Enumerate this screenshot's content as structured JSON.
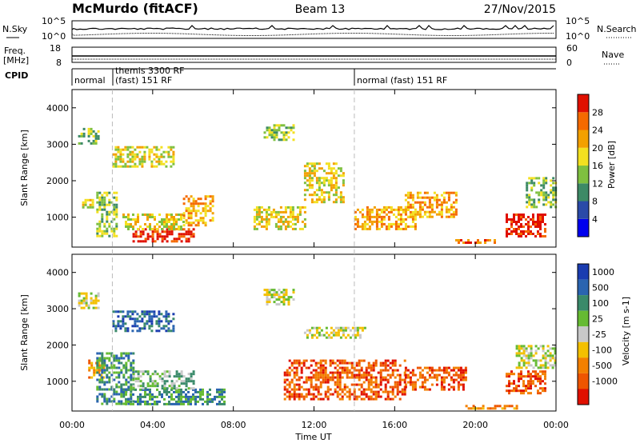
{
  "header": {
    "title": "McMurdo (fitACF)",
    "beam": "Beam 13",
    "date": "27/Nov/2015"
  },
  "top_panels": {
    "nsky_label": "N.Sky",
    "nsearch_label": "N.Search",
    "nsky_scale": [
      "10^5",
      "10^0"
    ],
    "nsearch_scale": [
      "10^5",
      "10^0"
    ],
    "freq_label": "Freq.",
    "freq_unit": "[MHz]",
    "freq_ticks": [
      "18",
      "8"
    ],
    "nave_label": "Nave",
    "nave_ticks": [
      "60",
      "0"
    ],
    "cpid_label": "CPID",
    "cpid_segments": [
      {
        "start_hour": 0,
        "label": "normal"
      },
      {
        "start_hour": 2,
        "label": "themis 3300 RF",
        "sub": "(fast) 151 RF"
      },
      {
        "start_hour": 14,
        "label": "normal (fast) 151 RF"
      }
    ]
  },
  "chart_data": [
    {
      "type": "heatmap",
      "panel": "power",
      "ylabel": "Slant Range [km]",
      "ylim": [
        180,
        4500
      ],
      "yticks": [
        "1000",
        "2000",
        "3000",
        "4000"
      ],
      "x_hours": [
        0,
        24
      ],
      "colorbar": {
        "label": "Power [dB]",
        "ticks": [
          "4",
          "8",
          "12",
          "16",
          "20",
          "24",
          "28"
        ],
        "colors": [
          "#0000ee",
          "#2a4aa8",
          "#3d8a66",
          "#7fc040",
          "#f3e020",
          "#f3a000",
          "#f56a00",
          "#e01000"
        ]
      },
      "echo_regions": [
        {
          "t0": 0.3,
          "t1": 1.3,
          "r0": 3000,
          "r1": 3450,
          "level": 3
        },
        {
          "t0": 0.5,
          "t1": 1.2,
          "r0": 1250,
          "r1": 1500,
          "level": 4
        },
        {
          "t0": 1.2,
          "t1": 2.2,
          "r0": 500,
          "r1": 1700,
          "level": 3
        },
        {
          "t0": 2.0,
          "t1": 5.0,
          "r0": 2400,
          "r1": 2950,
          "level": 4
        },
        {
          "t0": 3.0,
          "t1": 6.0,
          "r0": 350,
          "r1": 700,
          "level": 7
        },
        {
          "t0": 2.5,
          "t1": 5.5,
          "r0": 700,
          "r1": 1100,
          "level": 4
        },
        {
          "t0": 5.5,
          "t1": 7.0,
          "r0": 800,
          "r1": 1600,
          "level": 5
        },
        {
          "t0": 9.5,
          "t1": 11.0,
          "r0": 3100,
          "r1": 3550,
          "level": 3
        },
        {
          "t0": 9.0,
          "t1": 11.5,
          "r0": 700,
          "r1": 1300,
          "level": 4
        },
        {
          "t0": 11.5,
          "t1": 13.5,
          "r0": 1400,
          "r1": 2500,
          "level": 4
        },
        {
          "t0": 14.0,
          "t1": 17.0,
          "r0": 700,
          "r1": 1300,
          "level": 5
        },
        {
          "t0": 16.5,
          "t1": 19.0,
          "r0": 1000,
          "r1": 1700,
          "level": 5
        },
        {
          "t0": 19.0,
          "t1": 21.0,
          "r0": 300,
          "r1": 400,
          "level": 6
        },
        {
          "t0": 21.5,
          "t1": 23.5,
          "r0": 500,
          "r1": 1100,
          "level": 7
        },
        {
          "t0": 22.5,
          "t1": 24.0,
          "r0": 1300,
          "r1": 2100,
          "level": 3
        }
      ]
    },
    {
      "type": "heatmap",
      "panel": "velocity",
      "ylabel": "Slant Range [km]",
      "xlabel": "Time UT",
      "ylim": [
        180,
        4500
      ],
      "yticks": [
        "1000",
        "2000",
        "3000",
        "4000"
      ],
      "xticks": [
        "00:00",
        "04:00",
        "08:00",
        "12:00",
        "16:00",
        "20:00",
        "00:00"
      ],
      "colorbar": {
        "label": "Velocity [m s-1]",
        "ticks": [
          "1000",
          "500",
          "100",
          "25",
          "-25",
          "-100",
          "-500",
          "-1000"
        ],
        "colors": [
          "#1a3cb0",
          "#2a64b0",
          "#3a8a6a",
          "#66bb33",
          "#c8c8c8",
          "#f3c000",
          "#f38000",
          "#ee5500",
          "#e01000"
        ]
      },
      "echo_regions": [
        {
          "t0": 0.3,
          "t1": 1.3,
          "r0": 3000,
          "r1": 3450,
          "level": 4
        },
        {
          "t0": 0.8,
          "t1": 1.6,
          "r0": 1100,
          "r1": 1600,
          "level": 6
        },
        {
          "t0": 1.2,
          "t1": 3.0,
          "r0": 400,
          "r1": 1800,
          "level": 2
        },
        {
          "t0": 2.0,
          "t1": 5.0,
          "r0": 2400,
          "r1": 2950,
          "level": 1
        },
        {
          "t0": 2.5,
          "t1": 7.5,
          "r0": 350,
          "r1": 800,
          "level": 2
        },
        {
          "t0": 3.0,
          "t1": 6.0,
          "r0": 800,
          "r1": 1300,
          "level": 3
        },
        {
          "t0": 9.5,
          "t1": 11.0,
          "r0": 3100,
          "r1": 3550,
          "level": 4
        },
        {
          "t0": 10.5,
          "t1": 16.5,
          "r0": 500,
          "r1": 1600,
          "level": 7
        },
        {
          "t0": 11.5,
          "t1": 14.5,
          "r0": 2200,
          "r1": 2500,
          "level": 4
        },
        {
          "t0": 16.5,
          "t1": 19.5,
          "r0": 800,
          "r1": 1400,
          "level": 7
        },
        {
          "t0": 19.5,
          "t1": 22.0,
          "r0": 250,
          "r1": 350,
          "level": 6
        },
        {
          "t0": 21.5,
          "t1": 23.5,
          "r0": 700,
          "r1": 1300,
          "level": 7
        },
        {
          "t0": 22.0,
          "t1": 24.0,
          "r0": 1400,
          "r1": 2000,
          "level": 4
        }
      ]
    }
  ]
}
